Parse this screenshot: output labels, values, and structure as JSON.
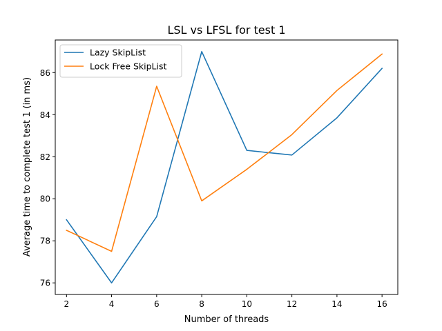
{
  "chart_data": {
    "type": "line",
    "title": "LSL vs LFSL for test 1",
    "xlabel": "Number of threads",
    "ylabel": "Average time to complete test 1 (in ms)",
    "x": [
      2,
      4,
      6,
      8,
      10,
      12,
      14,
      16
    ],
    "xlim": [
      1.5,
      16.7
    ],
    "ylim": [
      75.45,
      87.55
    ],
    "xticks": [
      "2",
      "4",
      "6",
      "8",
      "10",
      "12",
      "14",
      "16"
    ],
    "yticks": [
      "76",
      "78",
      "80",
      "82",
      "84",
      "86"
    ],
    "grid": false,
    "legend": "top-left",
    "series": [
      {
        "name": "Lazy SkipList",
        "color": "#1f77b4",
        "values": [
          79.0,
          76.0,
          79.15,
          87.0,
          82.3,
          82.08,
          83.85,
          86.2
        ]
      },
      {
        "name": "Lock Free SkipList",
        "color": "#ff7f0e",
        "values": [
          78.5,
          77.5,
          85.35,
          79.9,
          81.4,
          83.05,
          85.15,
          86.88
        ]
      }
    ]
  }
}
